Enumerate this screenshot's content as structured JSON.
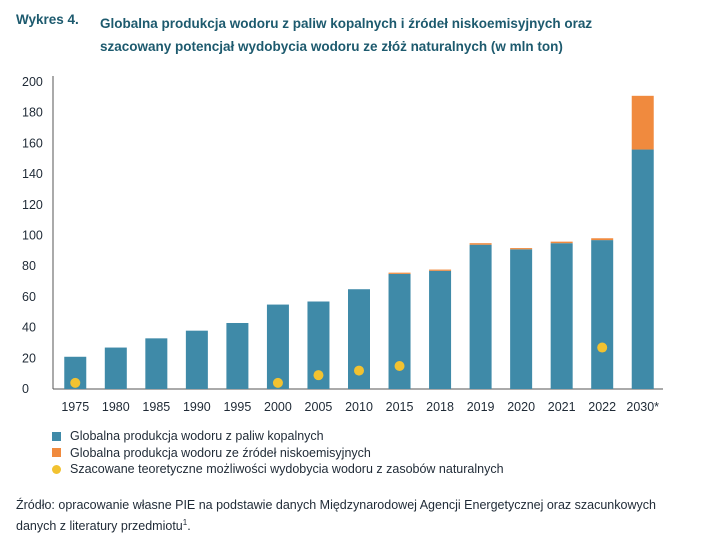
{
  "figure": {
    "label": "Wykres 4.",
    "title_line1": "Globalna produkcja wodoru z paliw kopalnych i źródeł niskoemisyjnych oraz",
    "title_line2": "szacowany potencjał wydobycia wodoru ze złóż naturalnych (w mln ton)"
  },
  "chart_data": {
    "type": "bar",
    "stacked": true,
    "categories": [
      "1975",
      "1980",
      "1985",
      "1990",
      "1995",
      "2000",
      "2005",
      "2010",
      "2015",
      "2018",
      "2019",
      "2020",
      "2021",
      "2022",
      "2030*"
    ],
    "ylim": [
      0,
      200
    ],
    "yticks": [
      0,
      20,
      40,
      60,
      80,
      100,
      120,
      140,
      160,
      180,
      200
    ],
    "series": [
      {
        "name": "Globalna produkcja wodoru z paliw kopalnych",
        "kind": "bar",
        "color": "#3f8aa8",
        "values": [
          21,
          27,
          33,
          38,
          43,
          55,
          57,
          65,
          75,
          77,
          94,
          91,
          95,
          97,
          156
        ]
      },
      {
        "name": "Globalna produkcja wodoru ze źródeł niskoemisyjnych",
        "kind": "bar",
        "color": "#f08a3e",
        "values": [
          0,
          0,
          0,
          0,
          0,
          0,
          0,
          0,
          0.8,
          0.8,
          1.0,
          0.8,
          1.0,
          1.2,
          35
        ]
      },
      {
        "name": "Szacowane teoretyczne możliwości wydobycia wodoru z zasobów naturalnych",
        "kind": "dot",
        "color": "#f2c230",
        "values": [
          4,
          null,
          null,
          null,
          null,
          4,
          9,
          12,
          15,
          null,
          null,
          null,
          null,
          27,
          null
        ]
      }
    ],
    "grid": false,
    "legend": "bottom-left"
  },
  "source": {
    "text": "Źródło: opracowanie własne PIE na podstawie danych Międzynarodowej Agencji Energetycznej oraz szacunkowych danych z literatury przedmiotu",
    "footnote_mark": "1",
    "end": "."
  }
}
